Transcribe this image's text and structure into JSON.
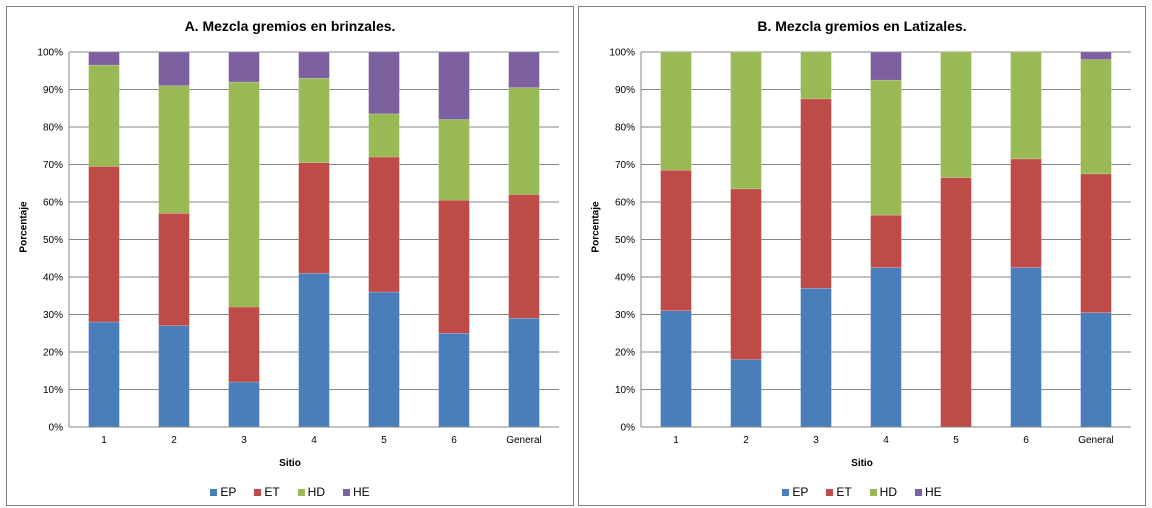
{
  "colors": {
    "EP": "#4a7ebb",
    "ET": "#be4b48",
    "HD": "#98b954",
    "HE": "#7d60a0"
  },
  "chart_data": [
    {
      "type": "bar",
      "stacked": true,
      "title": "A. Mezcla gremios en brinzales.",
      "xlabel": "Sitio",
      "ylabel": "Porcentaje",
      "categories": [
        "1",
        "2",
        "3",
        "4",
        "5",
        "6",
        "General"
      ],
      "yticks": [
        "0%",
        "10%",
        "20%",
        "30%",
        "40%",
        "50%",
        "60%",
        "70%",
        "80%",
        "90%",
        "100%"
      ],
      "ylim": [
        0,
        100
      ],
      "grid": true,
      "legend": "bottom",
      "series": [
        {
          "name": "EP",
          "values": [
            28,
            27,
            12,
            41,
            36,
            25,
            29
          ]
        },
        {
          "name": "ET",
          "values": [
            41.5,
            30,
            20,
            29.5,
            36,
            35.5,
            33
          ]
        },
        {
          "name": "HD",
          "values": [
            27,
            34,
            60,
            22.5,
            11.5,
            21.5,
            28.5
          ]
        },
        {
          "name": "HE",
          "values": [
            3.5,
            9,
            8,
            7,
            16.5,
            18,
            9.5
          ]
        }
      ]
    },
    {
      "type": "bar",
      "stacked": true,
      "title": "B. Mezcla gremios en Latizales.",
      "xlabel": "Sitio",
      "ylabel": "Porcentaje",
      "categories": [
        "1",
        "2",
        "3",
        "4",
        "5",
        "6",
        "General"
      ],
      "yticks": [
        "0%",
        "10%",
        "20%",
        "30%",
        "40%",
        "50%",
        "60%",
        "70%",
        "80%",
        "90%",
        "100%"
      ],
      "ylim": [
        0,
        100
      ],
      "grid": true,
      "legend": "bottom",
      "series": [
        {
          "name": "EP",
          "values": [
            31,
            18,
            37,
            42.5,
            0,
            42.5,
            30.5
          ]
        },
        {
          "name": "ET",
          "values": [
            37.5,
            45.5,
            50.5,
            14,
            66.5,
            29,
            37
          ]
        },
        {
          "name": "HD",
          "values": [
            31.5,
            36.5,
            12.5,
            36,
            33.5,
            28.5,
            30.5
          ]
        },
        {
          "name": "HE",
          "values": [
            0,
            0,
            0,
            7.5,
            0,
            0,
            2
          ]
        }
      ]
    }
  ]
}
